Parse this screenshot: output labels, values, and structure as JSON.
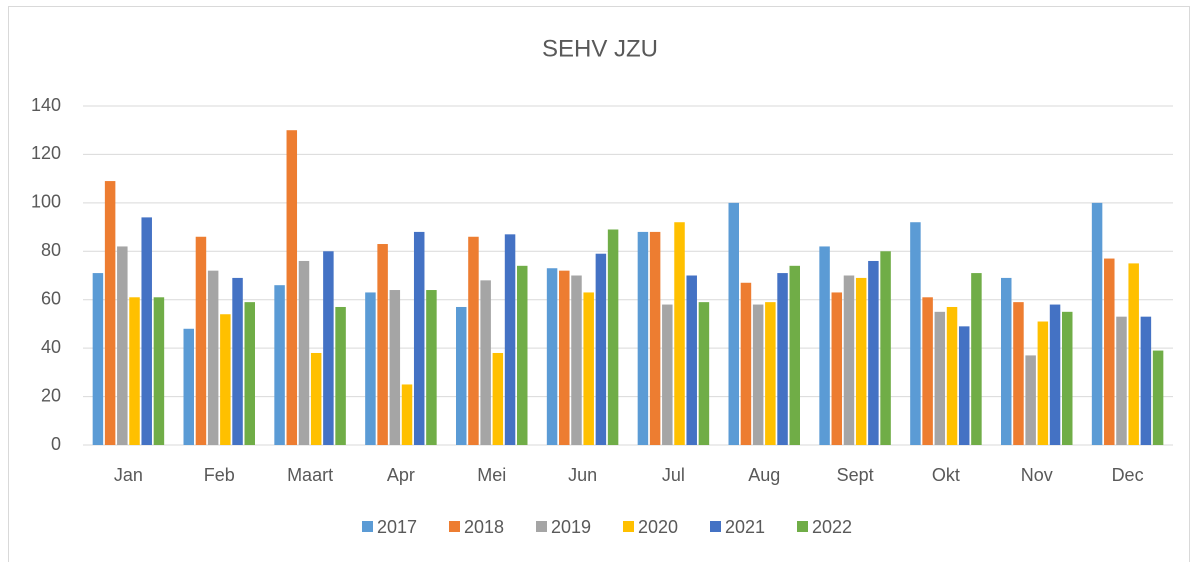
{
  "chart_data": {
    "type": "bar",
    "title": "SEHV JZU",
    "categories": [
      "Jan",
      "Feb",
      "Maart",
      "Apr",
      "Mei",
      "Jun",
      "Jul",
      "Aug",
      "Sept",
      "Okt",
      "Nov",
      "Dec"
    ],
    "series": [
      {
        "name": "2017",
        "color": "#5b9bd5",
        "values": [
          71,
          48,
          66,
          63,
          57,
          73,
          88,
          100,
          82,
          92,
          69,
          100
        ]
      },
      {
        "name": "2018",
        "color": "#ed7d31",
        "values": [
          109,
          86,
          130,
          83,
          86,
          72,
          88,
          67,
          63,
          61,
          59,
          77
        ]
      },
      {
        "name": "2019",
        "color": "#a5a5a5",
        "values": [
          82,
          72,
          76,
          64,
          68,
          70,
          58,
          58,
          70,
          55,
          37,
          53
        ]
      },
      {
        "name": "2020",
        "color": "#ffc000",
        "values": [
          61,
          54,
          38,
          25,
          38,
          63,
          92,
          59,
          69,
          57,
          51,
          75
        ]
      },
      {
        "name": "2021",
        "color": "#4472c4",
        "values": [
          94,
          69,
          80,
          88,
          87,
          79,
          70,
          71,
          76,
          49,
          58,
          53
        ]
      },
      {
        "name": "2022",
        "color": "#70ad47",
        "values": [
          61,
          59,
          57,
          64,
          74,
          89,
          59,
          74,
          80,
          71,
          55,
          39
        ]
      }
    ],
    "ylim": [
      0,
      140
    ],
    "yticks": [
      0,
      20,
      40,
      60,
      80,
      100,
      120,
      140
    ],
    "grid": true,
    "legend": "bottom"
  }
}
